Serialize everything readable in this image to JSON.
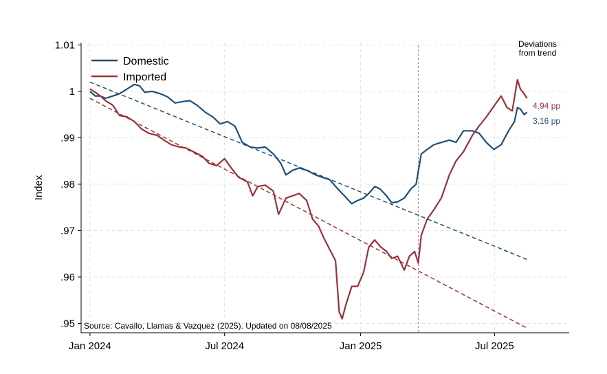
{
  "chart_data": {
    "type": "line",
    "ylabel": "Index",
    "xlabel": "",
    "ylim": [
      0.948,
      1.0105
    ],
    "x_tick_labels": [
      "Jan 2024",
      "Jul 2024",
      "Jan 2025",
      "Jul 2025"
    ],
    "y_tick_labels": [
      "1.01",
      "1",
      ".99",
      ".98",
      ".97",
      ".96",
      ".95"
    ],
    "y_tick_values": [
      1.01,
      1.0,
      0.99,
      0.98,
      0.97,
      0.96,
      0.95
    ],
    "grid": true,
    "legend_position": "top-left",
    "vline_label": "",
    "annotations": {
      "deviations_title_line1": "Deviations",
      "deviations_title_line2": "from trend",
      "imported_deviation": "4.94 pp",
      "domestic_deviation": "3.16 pp"
    },
    "source_note": "Source: Cavallo, Llamas & Vazquez (2025). Updated on 08/08/2025",
    "colors": {
      "domestic": "#1f4e79",
      "imported": "#9b3039",
      "vline": "#999999",
      "grid": "#e3e3e3"
    },
    "series": [
      {
        "name": "Domestic",
        "points": [
          [
            "2024-01-01",
            1.0
          ],
          [
            "2024-01-08",
            0.999
          ],
          [
            "2024-01-15",
            0.999
          ],
          [
            "2024-01-22",
            0.9985
          ],
          [
            "2024-02-01",
            0.999
          ],
          [
            "2024-02-10",
            0.9995
          ],
          [
            "2024-02-20",
            1.0005
          ],
          [
            "2024-03-01",
            1.0015
          ],
          [
            "2024-03-08",
            1.0012
          ],
          [
            "2024-03-15",
            0.9998
          ],
          [
            "2024-03-25",
            1.0
          ],
          [
            "2024-04-05",
            0.9995
          ],
          [
            "2024-04-15",
            0.9988
          ],
          [
            "2024-04-25",
            0.9975
          ],
          [
            "2024-05-05",
            0.9978
          ],
          [
            "2024-05-15",
            0.998
          ],
          [
            "2024-05-25",
            0.997
          ],
          [
            "2024-06-05",
            0.9955
          ],
          [
            "2024-06-15",
            0.9945
          ],
          [
            "2024-06-25",
            0.993
          ],
          [
            "2024-07-05",
            0.9935
          ],
          [
            "2024-07-15",
            0.9925
          ],
          [
            "2024-07-25",
            0.989
          ],
          [
            "2024-08-05",
            0.988
          ],
          [
            "2024-08-15",
            0.9878
          ],
          [
            "2024-08-25",
            0.988
          ],
          [
            "2024-09-05",
            0.9865
          ],
          [
            "2024-09-15",
            0.9845
          ],
          [
            "2024-09-22",
            0.982
          ],
          [
            "2024-10-01",
            0.983
          ],
          [
            "2024-10-10",
            0.9835
          ],
          [
            "2024-10-20",
            0.983
          ],
          [
            "2024-11-01",
            0.982
          ],
          [
            "2024-11-10",
            0.9815
          ],
          [
            "2024-11-20",
            0.981
          ],
          [
            "2024-12-01",
            0.979
          ],
          [
            "2024-12-10",
            0.9775
          ],
          [
            "2024-12-20",
            0.9758
          ],
          [
            "2024-12-28",
            0.9765
          ],
          [
            "2025-01-05",
            0.977
          ],
          [
            "2025-01-12",
            0.978
          ],
          [
            "2025-01-20",
            0.9795
          ],
          [
            "2025-01-27",
            0.979
          ],
          [
            "2025-02-05",
            0.9775
          ],
          [
            "2025-02-12",
            0.976
          ],
          [
            "2025-02-20",
            0.9762
          ],
          [
            "2025-03-01",
            0.977
          ],
          [
            "2025-03-10",
            0.979
          ],
          [
            "2025-03-17",
            0.98
          ],
          [
            "2025-03-24",
            0.9865
          ],
          [
            "2025-04-01",
            0.9875
          ],
          [
            "2025-04-10",
            0.9885
          ],
          [
            "2025-04-20",
            0.989
          ],
          [
            "2025-05-01",
            0.9895
          ],
          [
            "2025-05-10",
            0.989
          ],
          [
            "2025-05-20",
            0.9915
          ],
          [
            "2025-06-01",
            0.9915
          ],
          [
            "2025-06-10",
            0.991
          ],
          [
            "2025-06-20",
            0.989
          ],
          [
            "2025-06-30",
            0.9875
          ],
          [
            "2025-07-10",
            0.9885
          ],
          [
            "2025-07-20",
            0.9915
          ],
          [
            "2025-07-28",
            0.9935
          ],
          [
            "2025-08-01",
            0.9965
          ],
          [
            "2025-08-05",
            0.9962
          ],
          [
            "2025-08-10",
            0.995
          ],
          [
            "2025-08-14",
            0.9955
          ]
        ],
        "trend": [
          [
            "2024-01-01",
            1.002
          ],
          [
            "2025-08-14",
            0.9638
          ]
        ]
      },
      {
        "name": "Imported",
        "points": [
          [
            "2024-01-01",
            1.0005
          ],
          [
            "2024-01-08",
            0.9998
          ],
          [
            "2024-01-15",
            0.999
          ],
          [
            "2024-01-22",
            0.998
          ],
          [
            "2024-02-01",
            0.997
          ],
          [
            "2024-02-10",
            0.9948
          ],
          [
            "2024-02-20",
            0.9945
          ],
          [
            "2024-03-01",
            0.9935
          ],
          [
            "2024-03-10",
            0.992
          ],
          [
            "2024-03-20",
            0.991
          ],
          [
            "2024-04-01",
            0.9905
          ],
          [
            "2024-04-10",
            0.9895
          ],
          [
            "2024-04-20",
            0.9885
          ],
          [
            "2024-05-01",
            0.988
          ],
          [
            "2024-05-10",
            0.9878
          ],
          [
            "2024-05-20",
            0.987
          ],
          [
            "2024-06-01",
            0.986
          ],
          [
            "2024-06-10",
            0.9845
          ],
          [
            "2024-06-20",
            0.984
          ],
          [
            "2024-07-01",
            0.9855
          ],
          [
            "2024-07-10",
            0.9835
          ],
          [
            "2024-07-20",
            0.9815
          ],
          [
            "2024-08-01",
            0.9805
          ],
          [
            "2024-08-08",
            0.9775
          ],
          [
            "2024-08-15",
            0.9795
          ],
          [
            "2024-08-25",
            0.9798
          ],
          [
            "2024-09-05",
            0.9785
          ],
          [
            "2024-09-12",
            0.9735
          ],
          [
            "2024-09-22",
            0.977
          ],
          [
            "2024-10-01",
            0.9775
          ],
          [
            "2024-10-10",
            0.978
          ],
          [
            "2024-10-20",
            0.9765
          ],
          [
            "2024-10-28",
            0.9725
          ],
          [
            "2024-11-05",
            0.971
          ],
          [
            "2024-11-12",
            0.9685
          ],
          [
            "2024-11-20",
            0.966
          ],
          [
            "2024-11-28",
            0.9635
          ],
          [
            "2024-12-03",
            0.9525
          ],
          [
            "2024-12-07",
            0.951
          ],
          [
            "2024-12-12",
            0.954
          ],
          [
            "2024-12-20",
            0.958
          ],
          [
            "2024-12-28",
            0.958
          ],
          [
            "2025-01-05",
            0.961
          ],
          [
            "2025-01-12",
            0.9665
          ],
          [
            "2025-01-20",
            0.968
          ],
          [
            "2025-01-28",
            0.9665
          ],
          [
            "2025-02-05",
            0.9655
          ],
          [
            "2025-02-12",
            0.964
          ],
          [
            "2025-02-20",
            0.9645
          ],
          [
            "2025-03-01",
            0.9615
          ],
          [
            "2025-03-08",
            0.9645
          ],
          [
            "2025-03-15",
            0.9655
          ],
          [
            "2025-03-20",
            0.963
          ],
          [
            "2025-03-24",
            0.969
          ],
          [
            "2025-04-01",
            0.9725
          ],
          [
            "2025-04-10",
            0.9745
          ],
          [
            "2025-04-20",
            0.977
          ],
          [
            "2025-05-01",
            0.982
          ],
          [
            "2025-05-10",
            0.985
          ],
          [
            "2025-05-20",
            0.987
          ],
          [
            "2025-06-01",
            0.9905
          ],
          [
            "2025-06-10",
            0.9925
          ],
          [
            "2025-06-20",
            0.9945
          ],
          [
            "2025-07-01",
            0.997
          ],
          [
            "2025-07-10",
            0.999
          ],
          [
            "2025-07-18",
            0.9965
          ],
          [
            "2025-07-25",
            0.9958
          ],
          [
            "2025-08-01",
            1.0025
          ],
          [
            "2025-08-05",
            1.0005
          ],
          [
            "2025-08-10",
            0.9995
          ],
          [
            "2025-08-14",
            0.9985
          ]
        ],
        "trend": [
          [
            "2024-01-01",
            0.9985
          ],
          [
            "2025-08-14",
            0.949
          ]
        ]
      }
    ]
  }
}
